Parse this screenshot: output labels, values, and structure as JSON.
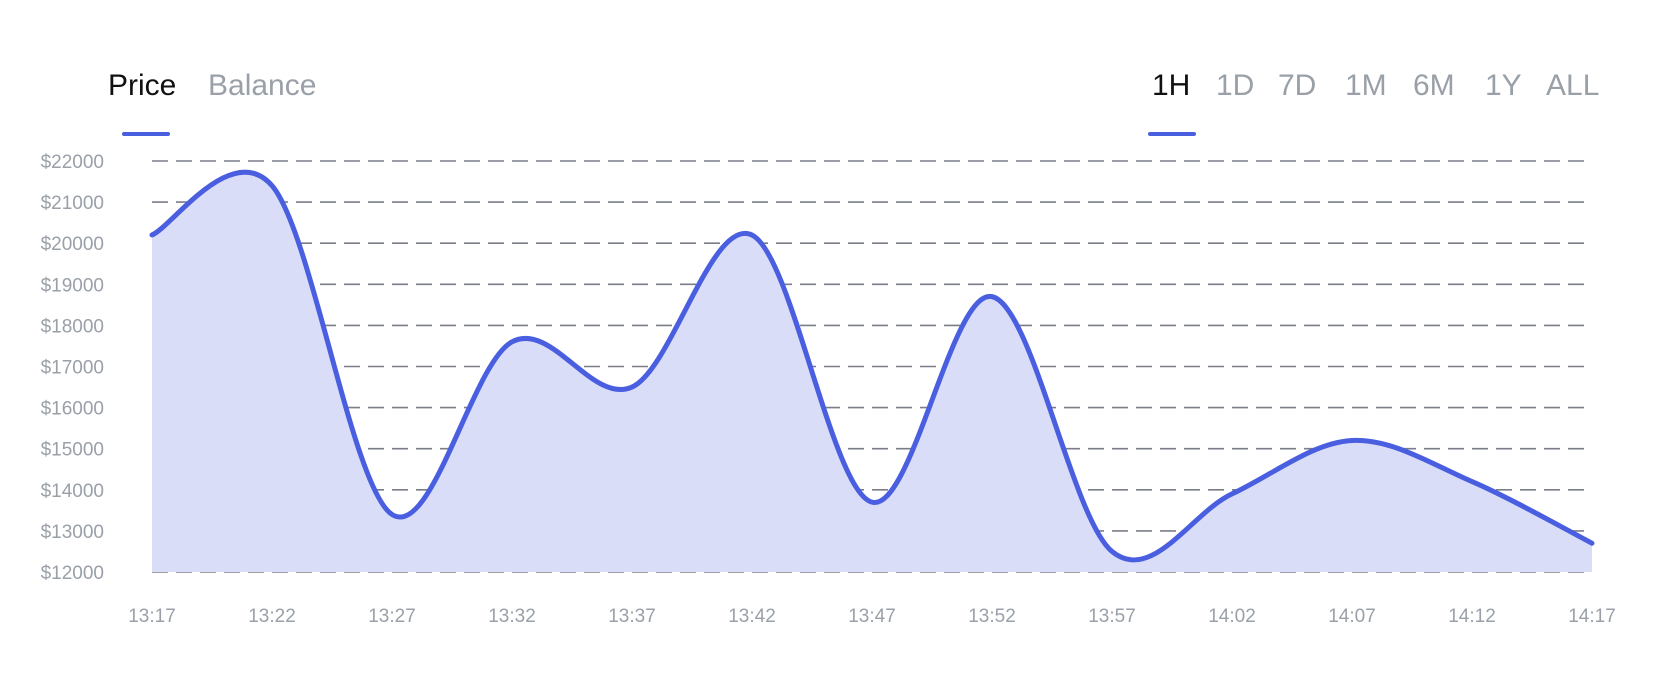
{
  "tabs": {
    "metric": [
      {
        "label": "Price",
        "active": true
      },
      {
        "label": "Balance",
        "active": false
      }
    ],
    "range": [
      {
        "label": "1H",
        "active": true
      },
      {
        "label": "1D",
        "active": false
      },
      {
        "label": "7D",
        "active": false
      },
      {
        "label": "1M",
        "active": false
      },
      {
        "label": "6M",
        "active": false
      },
      {
        "label": "1Y",
        "active": false
      },
      {
        "label": "ALL",
        "active": false
      }
    ]
  },
  "colors": {
    "accent": "#4a5fe0",
    "fill": "#d9ddf8",
    "grid": "#7a7e88",
    "tick_text": "#9aa0a8",
    "active_text": "#111111"
  },
  "chart_data": {
    "type": "area",
    "x": [
      "13:17",
      "13:22",
      "13:27",
      "13:32",
      "13:37",
      "13:42",
      "13:47",
      "13:52",
      "13:57",
      "14:02",
      "14:07",
      "14:12",
      "14:17"
    ],
    "y_ticks": [
      "$12000",
      "$13000",
      "$14000",
      "$15000",
      "$16000",
      "$17000",
      "$18000",
      "$19000",
      "$20000",
      "$21000",
      "$22000"
    ],
    "ylim": [
      12000,
      22000
    ],
    "grid": true,
    "grid_style": "dashed",
    "series": [
      {
        "values": [
          20200,
          21400,
          13400,
          17600,
          16500,
          20200,
          13700,
          18700,
          12500,
          13900,
          15200,
          14200,
          12700
        ]
      }
    ]
  }
}
